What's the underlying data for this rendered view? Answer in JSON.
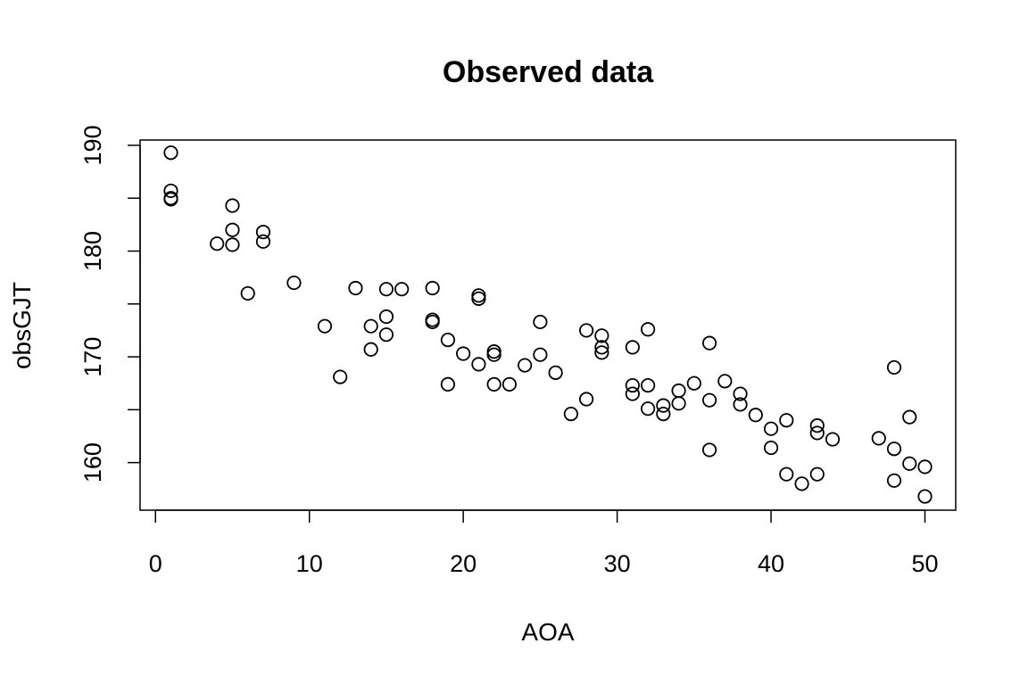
{
  "chart_data": {
    "type": "scatter",
    "title": "Observed data",
    "xlabel": "AOA",
    "ylabel": "obsGJT",
    "xlim": [
      -1,
      52
    ],
    "ylim": [
      155.5,
      190.5
    ],
    "xticks": [
      0,
      10,
      20,
      30,
      40,
      50
    ],
    "yticks": [
      160,
      165,
      170,
      175,
      180,
      185,
      190
    ],
    "ytick_labels": [
      "160",
      "",
      "170",
      "",
      "180",
      "",
      "190"
    ],
    "grid": false,
    "legend": "none",
    "marker": "open-circle",
    "x": [
      1,
      1,
      1,
      1,
      4,
      5,
      5,
      5,
      6,
      7,
      7,
      9,
      11,
      12,
      13,
      14,
      14,
      15,
      15,
      15,
      16,
      18,
      18,
      18,
      19,
      19,
      20,
      21,
      21,
      21,
      22,
      22,
      22,
      23,
      24,
      25,
      25,
      26,
      27,
      28,
      28,
      29,
      29,
      29,
      31,
      31,
      31,
      32,
      32,
      32,
      33,
      33,
      34,
      34,
      35,
      36,
      36,
      36,
      37,
      38,
      38,
      39,
      40,
      40,
      41,
      41,
      42,
      43,
      43,
      43,
      44,
      47,
      48,
      48,
      48,
      49,
      49,
      50,
      50
    ],
    "y": [
      189.3,
      185.7,
      185.0,
      184.9,
      180.7,
      184.3,
      182.0,
      180.6,
      176.0,
      181.8,
      180.9,
      177.0,
      172.9,
      168.1,
      176.5,
      172.9,
      170.7,
      176.4,
      173.8,
      172.1,
      176.4,
      176.5,
      173.5,
      173.3,
      171.6,
      167.4,
      170.3,
      175.8,
      175.5,
      169.3,
      170.5,
      170.2,
      167.4,
      167.4,
      169.2,
      173.3,
      170.2,
      168.5,
      164.6,
      166.0,
      172.5,
      172.0,
      170.9,
      170.4,
      170.9,
      167.3,
      166.5,
      172.6,
      167.3,
      165.1,
      165.4,
      164.6,
      166.8,
      165.6,
      167.5,
      171.3,
      165.9,
      161.2,
      167.7,
      166.5,
      165.5,
      164.5,
      163.2,
      161.4,
      164.0,
      158.9,
      158.0,
      163.5,
      162.8,
      158.9,
      162.2,
      162.3,
      169.0,
      161.3,
      158.3,
      164.3,
      159.9,
      159.6,
      156.8
    ]
  }
}
